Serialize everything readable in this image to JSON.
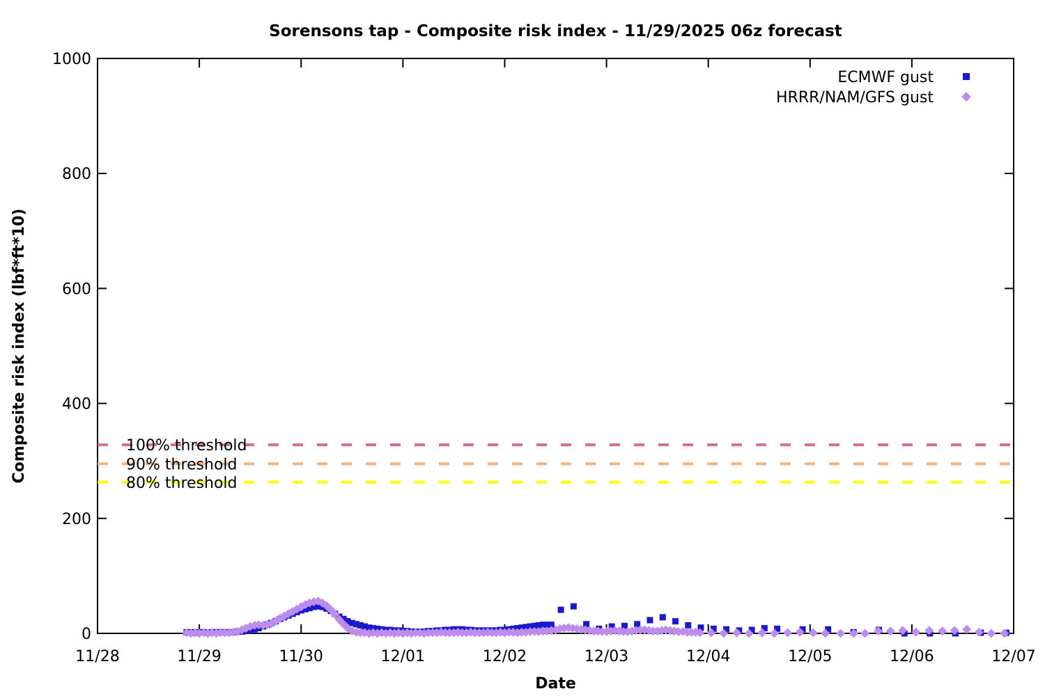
{
  "chart_data": {
    "type": "scatter",
    "title": "Sorensons tap - Composite risk index - 11/29/2025 06z forecast",
    "xlabel": "Date",
    "ylabel": "Composite risk index (lbf*ft*10)",
    "x_tick_labels": [
      "11/28",
      "11/29",
      "11/30",
      "12/01",
      "12/02",
      "12/03",
      "12/04",
      "12/05",
      "12/06",
      "12/07"
    ],
    "x_tick_days": [
      0,
      1,
      2,
      3,
      4,
      5,
      6,
      7,
      8,
      9
    ],
    "xlim_days": [
      0,
      9
    ],
    "y_ticks": [
      0,
      200,
      400,
      600,
      800,
      1000
    ],
    "ylim": [
      0,
      1000
    ],
    "grid": false,
    "legend_position": "top-right",
    "background": "#ffffff",
    "border_color": "#000000",
    "thresholds": [
      {
        "label": "100% threshold",
        "value": 328,
        "color": "#db6a83"
      },
      {
        "label": "90% threshold",
        "value": 295,
        "color": "#fcb078"
      },
      {
        "label": "80% threshold",
        "value": 263,
        "color": "#ffff00"
      }
    ],
    "series": [
      {
        "name": "ECMWF gust",
        "marker": "square",
        "color": "#1a1acd",
        "points": [
          [
            0.875,
            2
          ],
          [
            0.917,
            2
          ],
          [
            0.958,
            1
          ],
          [
            1.0,
            2
          ],
          [
            1.042,
            2
          ],
          [
            1.083,
            1
          ],
          [
            1.125,
            2
          ],
          [
            1.167,
            2
          ],
          [
            1.208,
            2
          ],
          [
            1.25,
            2
          ],
          [
            1.292,
            2
          ],
          [
            1.333,
            2
          ],
          [
            1.375,
            3
          ],
          [
            1.417,
            3
          ],
          [
            1.458,
            4
          ],
          [
            1.5,
            5
          ],
          [
            1.542,
            7
          ],
          [
            1.583,
            9
          ],
          [
            1.625,
            12
          ],
          [
            1.667,
            15
          ],
          [
            1.708,
            18
          ],
          [
            1.75,
            21
          ],
          [
            1.792,
            25
          ],
          [
            1.833,
            28
          ],
          [
            1.875,
            31
          ],
          [
            1.917,
            34
          ],
          [
            1.958,
            37
          ],
          [
            2.0,
            40
          ],
          [
            2.042,
            42
          ],
          [
            2.083,
            44
          ],
          [
            2.125,
            46
          ],
          [
            2.167,
            47
          ],
          [
            2.208,
            46
          ],
          [
            2.25,
            43
          ],
          [
            2.292,
            39
          ],
          [
            2.333,
            34
          ],
          [
            2.375,
            29
          ],
          [
            2.417,
            25
          ],
          [
            2.458,
            21
          ],
          [
            2.5,
            18
          ],
          [
            2.542,
            16
          ],
          [
            2.583,
            14
          ],
          [
            2.625,
            12
          ],
          [
            2.667,
            10
          ],
          [
            2.708,
            9
          ],
          [
            2.75,
            8
          ],
          [
            2.792,
            7
          ],
          [
            2.833,
            6
          ],
          [
            2.875,
            6
          ],
          [
            2.917,
            5
          ],
          [
            2.958,
            5
          ],
          [
            3.0,
            4
          ],
          [
            3.042,
            4
          ],
          [
            3.083,
            3
          ],
          [
            3.125,
            3
          ],
          [
            3.167,
            3
          ],
          [
            3.208,
            3
          ],
          [
            3.25,
            4
          ],
          [
            3.292,
            4
          ],
          [
            3.333,
            5
          ],
          [
            3.375,
            5
          ],
          [
            3.417,
            6
          ],
          [
            3.458,
            6
          ],
          [
            3.5,
            7
          ],
          [
            3.542,
            7
          ],
          [
            3.583,
            7
          ],
          [
            3.625,
            6
          ],
          [
            3.667,
            6
          ],
          [
            3.708,
            5
          ],
          [
            3.75,
            5
          ],
          [
            3.792,
            5
          ],
          [
            3.833,
            5
          ],
          [
            3.875,
            5
          ],
          [
            3.917,
            5
          ],
          [
            3.958,
            6
          ],
          [
            4.0,
            6
          ],
          [
            4.042,
            7
          ],
          [
            4.083,
            8
          ],
          [
            4.125,
            9
          ],
          [
            4.167,
            10
          ],
          [
            4.208,
            11
          ],
          [
            4.25,
            12
          ],
          [
            4.292,
            13
          ],
          [
            4.333,
            14
          ],
          [
            4.375,
            15
          ],
          [
            4.417,
            15
          ],
          [
            4.458,
            15
          ],
          [
            4.552,
            41
          ],
          [
            4.677,
            47
          ],
          [
            4.802,
            16
          ],
          [
            4.927,
            8
          ],
          [
            5.052,
            12
          ],
          [
            5.177,
            13
          ],
          [
            5.302,
            16
          ],
          [
            5.427,
            23
          ],
          [
            5.552,
            28
          ],
          [
            5.677,
            21
          ],
          [
            5.802,
            14
          ],
          [
            5.927,
            10
          ],
          [
            6.052,
            8
          ],
          [
            6.177,
            7
          ],
          [
            6.302,
            5
          ],
          [
            6.427,
            6
          ],
          [
            6.552,
            9
          ],
          [
            6.677,
            8
          ],
          [
            6.927,
            7
          ],
          [
            7.177,
            7
          ],
          [
            7.427,
            2
          ],
          [
            7.677,
            6
          ],
          [
            7.927,
            0
          ],
          [
            8.177,
            0
          ],
          [
            8.427,
            0
          ],
          [
            8.677,
            1
          ],
          [
            8.927,
            1
          ]
        ]
      },
      {
        "name": "HRRR/NAM/GFS gust",
        "marker": "diamond",
        "color": "#bd8cee",
        "points": [
          [
            0.875,
            1
          ],
          [
            0.917,
            0
          ],
          [
            0.958,
            1
          ],
          [
            1.0,
            0
          ],
          [
            1.042,
            1
          ],
          [
            1.083,
            0
          ],
          [
            1.125,
            1
          ],
          [
            1.167,
            0
          ],
          [
            1.208,
            1
          ],
          [
            1.25,
            1
          ],
          [
            1.292,
            1
          ],
          [
            1.333,
            2
          ],
          [
            1.375,
            3
          ],
          [
            1.417,
            6
          ],
          [
            1.458,
            9
          ],
          [
            1.5,
            12
          ],
          [
            1.542,
            14
          ],
          [
            1.583,
            15
          ],
          [
            1.625,
            14
          ],
          [
            1.667,
            15
          ],
          [
            1.708,
            17
          ],
          [
            1.75,
            21
          ],
          [
            1.792,
            26
          ],
          [
            1.833,
            30
          ],
          [
            1.875,
            34
          ],
          [
            1.917,
            38
          ],
          [
            1.958,
            42
          ],
          [
            2.0,
            46
          ],
          [
            2.042,
            50
          ],
          [
            2.083,
            53
          ],
          [
            2.125,
            55
          ],
          [
            2.167,
            56
          ],
          [
            2.208,
            53
          ],
          [
            2.25,
            48
          ],
          [
            2.292,
            41
          ],
          [
            2.333,
            33
          ],
          [
            2.375,
            24
          ],
          [
            2.417,
            16
          ],
          [
            2.458,
            9
          ],
          [
            2.5,
            4
          ],
          [
            2.542,
            2
          ],
          [
            2.583,
            1
          ],
          [
            2.625,
            1
          ],
          [
            2.667,
            0
          ],
          [
            2.708,
            1
          ],
          [
            2.75,
            0
          ],
          [
            2.792,
            1
          ],
          [
            2.833,
            0
          ],
          [
            2.875,
            1
          ],
          [
            2.917,
            0
          ],
          [
            2.958,
            1
          ],
          [
            3.0,
            0
          ],
          [
            3.042,
            1
          ],
          [
            3.083,
            0
          ],
          [
            3.125,
            1
          ],
          [
            3.167,
            1
          ],
          [
            3.208,
            0
          ],
          [
            3.25,
            1
          ],
          [
            3.292,
            1
          ],
          [
            3.333,
            1
          ],
          [
            3.375,
            2
          ],
          [
            3.417,
            1
          ],
          [
            3.458,
            1
          ],
          [
            3.5,
            1
          ],
          [
            3.542,
            2
          ],
          [
            3.583,
            1
          ],
          [
            3.625,
            1
          ],
          [
            3.667,
            2
          ],
          [
            3.708,
            1
          ],
          [
            3.75,
            1
          ],
          [
            3.792,
            1
          ],
          [
            3.833,
            2
          ],
          [
            3.875,
            1
          ],
          [
            3.917,
            1
          ],
          [
            3.958,
            2
          ],
          [
            4.0,
            1
          ],
          [
            4.042,
            2
          ],
          [
            4.083,
            2
          ],
          [
            4.125,
            1
          ],
          [
            4.167,
            2
          ],
          [
            4.208,
            2
          ],
          [
            4.25,
            3
          ],
          [
            4.292,
            3
          ],
          [
            4.333,
            3
          ],
          [
            4.375,
            4
          ],
          [
            4.417,
            4
          ],
          [
            4.458,
            5
          ],
          [
            4.5,
            6
          ],
          [
            4.542,
            8
          ],
          [
            4.583,
            9
          ],
          [
            4.625,
            10
          ],
          [
            4.667,
            9
          ],
          [
            4.708,
            8
          ],
          [
            4.75,
            7
          ],
          [
            4.792,
            6
          ],
          [
            4.833,
            5
          ],
          [
            4.875,
            4
          ],
          [
            4.917,
            4
          ],
          [
            4.958,
            3
          ],
          [
            5.0,
            3
          ],
          [
            5.042,
            4
          ],
          [
            5.083,
            5
          ],
          [
            5.125,
            4
          ],
          [
            5.167,
            3
          ],
          [
            5.208,
            3
          ],
          [
            5.25,
            4
          ],
          [
            5.292,
            5
          ],
          [
            5.333,
            6
          ],
          [
            5.375,
            6
          ],
          [
            5.417,
            5
          ],
          [
            5.458,
            4
          ],
          [
            5.5,
            4
          ],
          [
            5.542,
            5
          ],
          [
            5.583,
            6
          ],
          [
            5.625,
            5
          ],
          [
            5.667,
            4
          ],
          [
            5.708,
            3
          ],
          [
            5.75,
            3
          ],
          [
            5.792,
            2
          ],
          [
            5.833,
            2
          ],
          [
            5.875,
            2
          ],
          [
            5.917,
            1
          ],
          [
            6.03,
            1
          ],
          [
            6.15,
            0
          ],
          [
            6.28,
            1
          ],
          [
            6.4,
            0
          ],
          [
            6.53,
            1
          ],
          [
            6.65,
            0
          ],
          [
            6.78,
            1
          ],
          [
            6.9,
            2
          ],
          [
            7.03,
            1
          ],
          [
            7.15,
            0
          ],
          [
            7.3,
            0
          ],
          [
            7.43,
            0
          ],
          [
            7.54,
            0
          ],
          [
            7.67,
            4
          ],
          [
            7.79,
            4
          ],
          [
            7.91,
            5
          ],
          [
            8.04,
            2
          ],
          [
            8.17,
            5
          ],
          [
            8.3,
            4
          ],
          [
            8.42,
            5
          ],
          [
            8.54,
            7
          ],
          [
            8.66,
            2
          ],
          [
            8.78,
            0
          ],
          [
            8.91,
            0
          ]
        ]
      }
    ]
  }
}
